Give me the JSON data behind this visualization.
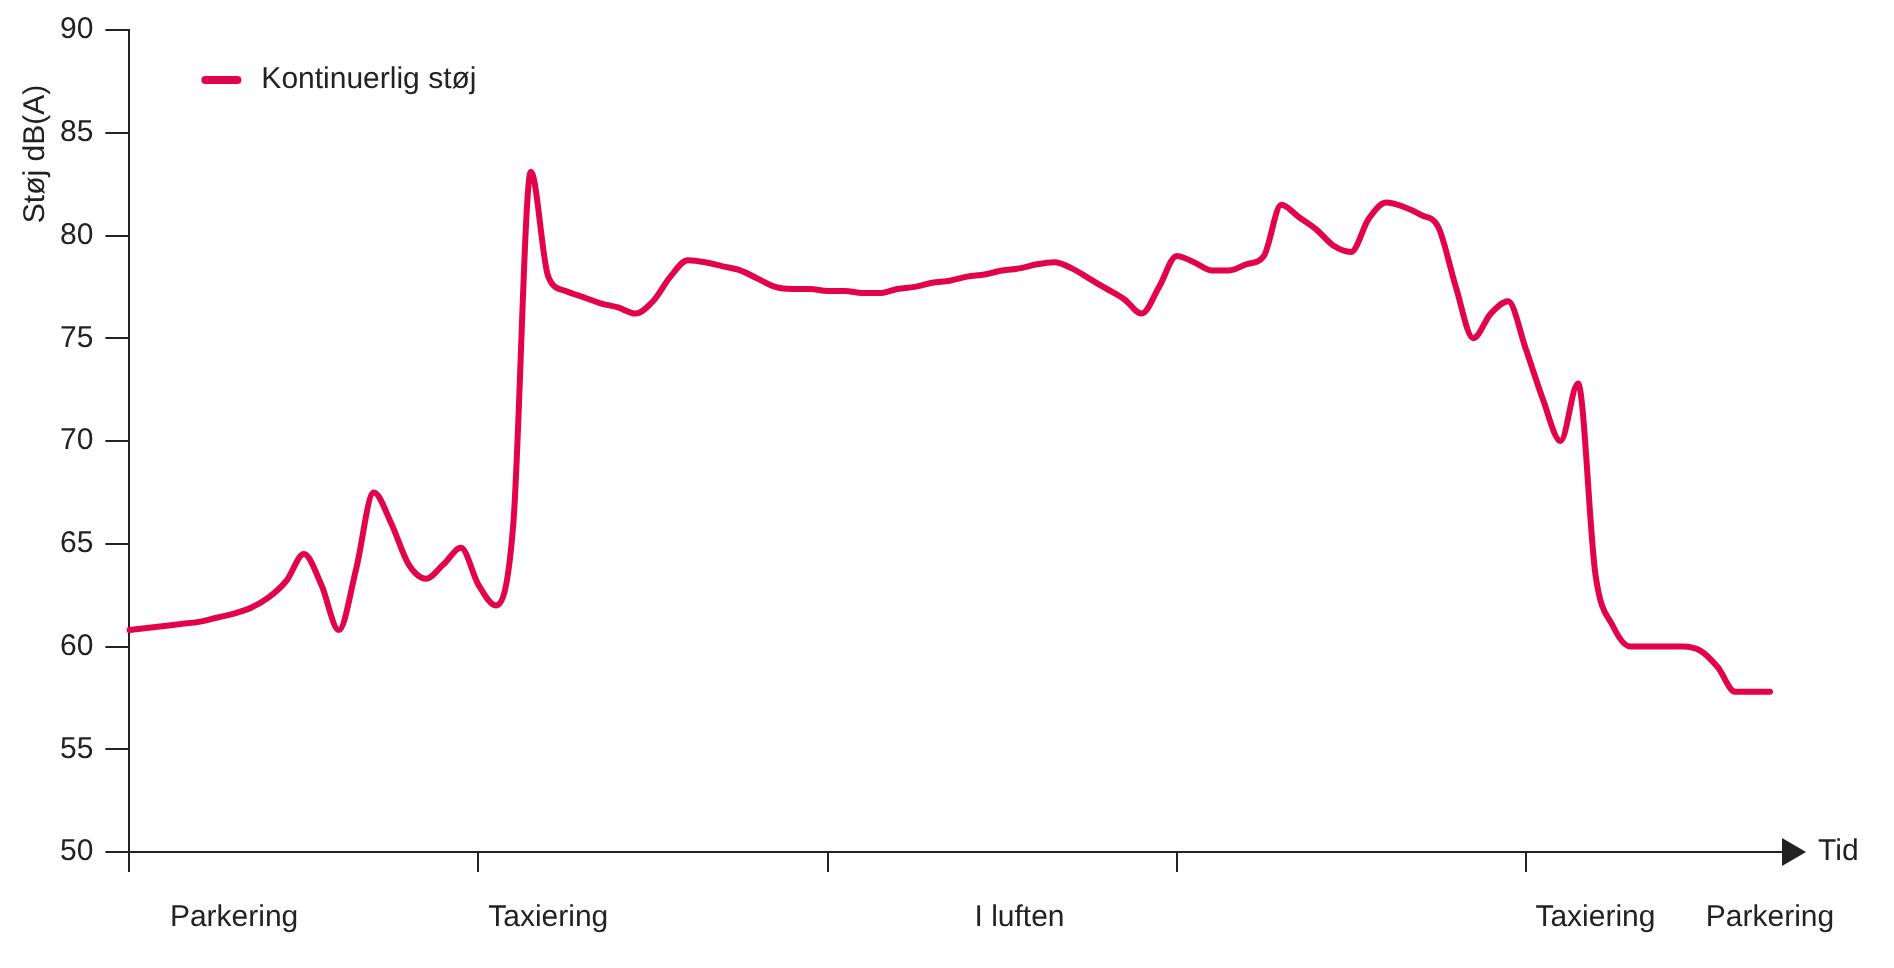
{
  "chart_data": {
    "type": "line",
    "xlabel": "Tid",
    "ylabel": "Støj dB(A)",
    "legend": "top left",
    "grid": false,
    "marker": "none",
    "line_style": "solid",
    "categories": [
      null,
      null,
      null,
      null,
      null,
      null,
      "Parkering",
      null,
      null,
      null,
      null,
      null,
      null,
      null,
      null,
      null,
      null,
      null,
      null,
      null,
      null,
      null,
      null,
      null,
      "Taxiering",
      null,
      null,
      null,
      null,
      null,
      null,
      null,
      null,
      null,
      null,
      null,
      null,
      null,
      null,
      null,
      null,
      null,
      null,
      null,
      null,
      null,
      null,
      null,
      null,
      null,
      null,
      "I luften",
      null,
      null,
      null,
      null,
      null,
      null,
      null,
      null,
      null,
      null,
      null,
      null,
      null,
      null,
      null,
      null,
      null,
      null,
      null,
      null,
      null,
      null,
      null,
      null,
      null,
      null,
      null,
      null,
      null,
      null,
      null,
      null,
      "Taxiering",
      null,
      null,
      null,
      null,
      null,
      null,
      null,
      null,
      null,
      "Parkering"
    ],
    "ylim": [
      50,
      90
    ],
    "yticks": [
      50,
      55,
      60,
      65,
      70,
      75,
      80,
      85,
      90
    ],
    "series": [
      {
        "name": "Kontinuerlig støj",
        "color": "#e2034b",
        "values": [
          60.8,
          60.9,
          61.0,
          61.1,
          61.2,
          61.4,
          61.6,
          61.9,
          62.4,
          63.2,
          64.5,
          63.0,
          60.8,
          63.8,
          67.5,
          66.0,
          64.0,
          63.3,
          64.0,
          64.8,
          63.0,
          62.0,
          66,
          83.1,
          78.0,
          77.3,
          77.0,
          76.7,
          76.5,
          76.2,
          76.8,
          78.0,
          78.8,
          78.7,
          78.5,
          78.3,
          77.9,
          77.5,
          77.4,
          77.4,
          77.3,
          77.3,
          77.2,
          77.2,
          77.4,
          77.5,
          77.7,
          77.8,
          78.0,
          78.1,
          78.3,
          78.4,
          78.6,
          78.7,
          78.4,
          77.9,
          77.4,
          76.9,
          76.2,
          77.5,
          79.0,
          78.7,
          78.3,
          78.3,
          78.6,
          79.0,
          81.5,
          80.9,
          80.3,
          79.5,
          79.2,
          80.8,
          81.6,
          81.4,
          81.0,
          80.4,
          77.5,
          75.0,
          76.2,
          76.8,
          74.5,
          72.0,
          70.0,
          72.8,
          63.5,
          61.0,
          60.0,
          60.0,
          60.0,
          60.0,
          59.8,
          59.0,
          57.8,
          57.8,
          57.8
        ]
      }
    ]
  }
}
